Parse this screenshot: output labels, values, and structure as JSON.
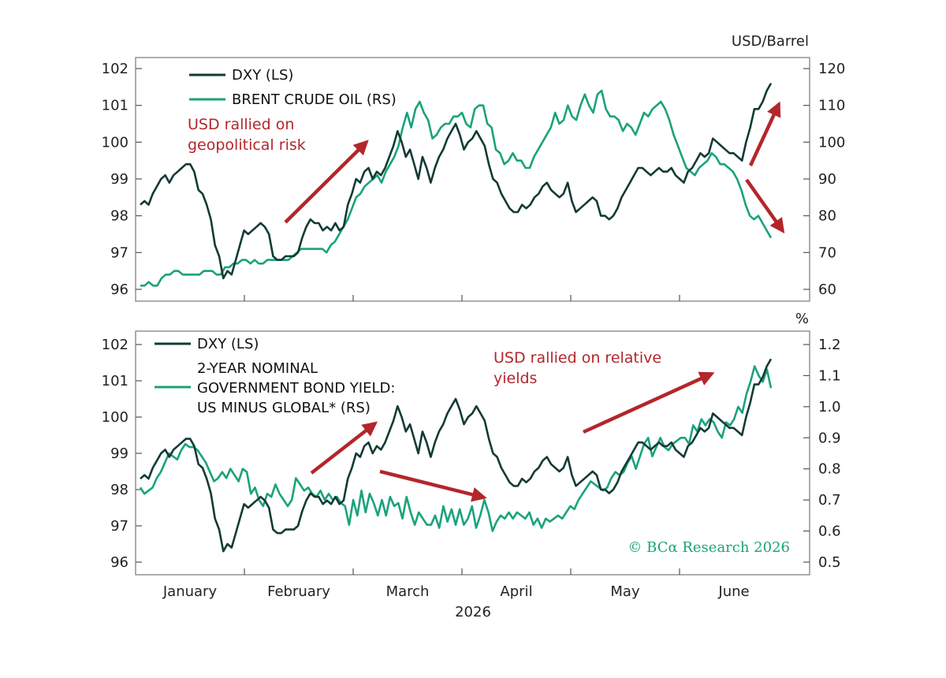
{
  "colors": {
    "dxy": "#143a35",
    "green": "#1aa37a",
    "arrow": "#b3262b",
    "axis": "#555555"
  },
  "x_axis": {
    "months": [
      "January",
      "February",
      "March",
      "April",
      "May",
      "June"
    ],
    "year": "2026"
  },
  "credit": "© BCα Research 2026",
  "chart_data": [
    {
      "type": "line",
      "left_axis": {
        "range": [
          96,
          102
        ],
        "ticks": [
          "102",
          "101",
          "100",
          "99",
          "98",
          "97",
          "96"
        ],
        "unit": ""
      },
      "right_axis": {
        "range": [
          60,
          120
        ],
        "ticks": [
          "120",
          "110",
          "100",
          "90",
          "80",
          "70",
          "60"
        ],
        "unit": "USD/Barrel"
      },
      "legend": [
        "DXY (LS)",
        "BRENT CRUDE OIL (RS)"
      ],
      "annotation": [
        "USD rallied on",
        "geopolitical risk"
      ],
      "series": [
        {
          "name": "DXY (LS)",
          "axis": "left",
          "values": [
            98.3,
            98.4,
            98.3,
            98.6,
            98.8,
            99.0,
            99.1,
            98.9,
            99.1,
            99.2,
            99.3,
            99.4,
            99.4,
            99.2,
            98.7,
            98.6,
            98.3,
            97.9,
            97.2,
            96.9,
            96.3,
            96.5,
            96.4,
            96.8,
            97.2,
            97.6,
            97.5,
            97.6,
            97.7,
            97.8,
            97.7,
            97.5,
            96.9,
            96.8,
            96.8,
            96.9,
            96.9,
            96.9,
            97.0,
            97.4,
            97.7,
            97.9,
            97.8,
            97.8,
            97.6,
            97.7,
            97.6,
            97.8,
            97.6,
            97.7,
            98.3,
            98.6,
            99.0,
            98.9,
            99.2,
            99.3,
            99.0,
            99.2,
            99.1,
            99.3,
            99.6,
            99.9,
            100.3,
            100.0,
            99.6,
            99.8,
            99.4,
            99.0,
            99.6,
            99.3,
            98.9,
            99.3,
            99.6,
            99.8,
            100.1,
            100.3,
            100.5,
            100.2,
            99.8,
            100.0,
            100.1,
            100.3,
            100.1,
            99.9,
            99.4,
            99.0,
            98.9,
            98.6,
            98.4,
            98.2,
            98.1,
            98.1,
            98.3,
            98.2,
            98.3,
            98.5,
            98.6,
            98.8,
            98.9,
            98.7,
            98.6,
            98.5,
            98.6,
            98.9,
            98.4,
            98.1,
            98.2,
            98.3,
            98.4,
            98.5,
            98.4,
            98.0,
            98.0,
            97.9,
            98.0,
            98.2,
            98.5,
            98.7,
            98.9,
            99.1,
            99.3,
            99.3,
            99.2,
            99.1,
            99.2,
            99.3,
            99.2,
            99.2,
            99.3,
            99.1,
            99.0,
            98.9,
            99.2,
            99.3,
            99.5,
            99.7,
            99.6,
            99.7,
            100.1,
            100.0,
            99.9,
            99.8,
            99.7,
            99.7,
            99.6,
            99.5,
            100.0,
            100.4,
            100.9,
            100.9,
            101.1,
            101.4,
            101.6
          ]
        },
        {
          "name": "BRENT CRUDE OIL (RS)",
          "axis": "right",
          "values": [
            61,
            61,
            62,
            61,
            61,
            63,
            64,
            64,
            65,
            65,
            64,
            64,
            64,
            64,
            64,
            65,
            65,
            65,
            64,
            64,
            66,
            66,
            67,
            67,
            68,
            68,
            67,
            68,
            67,
            67,
            68,
            68,
            68,
            68,
            68,
            68,
            69,
            70,
            71,
            71,
            71,
            71,
            71,
            71,
            70,
            72,
            73,
            75,
            77,
            79,
            82,
            85,
            86,
            88,
            89,
            90,
            91,
            89,
            92,
            94,
            96,
            99,
            104,
            108,
            104,
            109,
            111,
            108,
            106,
            101,
            102,
            104,
            105,
            105,
            107,
            107,
            108,
            105,
            104,
            109,
            110,
            110,
            105,
            104,
            98,
            97,
            94,
            95,
            97,
            95,
            95,
            93,
            93,
            96,
            98,
            100,
            102,
            104,
            108,
            105,
            106,
            110,
            107,
            106,
            110,
            113,
            110,
            108,
            113,
            114,
            109,
            107,
            107,
            106,
            103,
            105,
            104,
            102,
            105,
            108,
            107,
            109,
            110,
            111,
            109,
            106,
            102,
            99,
            96,
            93,
            92,
            91,
            93,
            94,
            95,
            97,
            96,
            94,
            94,
            93,
            92,
            90,
            87,
            83,
            80,
            79,
            80,
            78,
            76,
            74
          ]
        }
      ]
    },
    {
      "type": "line",
      "left_axis": {
        "range": [
          96,
          102
        ],
        "ticks": [
          "102",
          "101",
          "100",
          "99",
          "98",
          "97",
          "96"
        ],
        "unit": ""
      },
      "right_axis": {
        "range": [
          0.5,
          1.2
        ],
        "ticks": [
          "1.2",
          "1.1",
          "1.0",
          "0.9",
          "0.8",
          "0.7",
          "0.6",
          "0.5"
        ],
        "unit": "%"
      },
      "legend": [
        "DXY (LS)",
        "2-YEAR NOMINAL",
        "GOVERNMENT BOND YIELD:",
        "US MINUS GLOBAL* (RS)"
      ],
      "annotation": [
        "USD rallied on relative",
        "yields"
      ],
      "series": [
        {
          "name": "DXY (LS)",
          "axis": "left",
          "values": [
            98.3,
            98.4,
            98.3,
            98.6,
            98.8,
            99.0,
            99.1,
            98.9,
            99.1,
            99.2,
            99.3,
            99.4,
            99.4,
            99.2,
            98.7,
            98.6,
            98.3,
            97.9,
            97.2,
            96.9,
            96.3,
            96.5,
            96.4,
            96.8,
            97.2,
            97.6,
            97.5,
            97.6,
            97.7,
            97.8,
            97.7,
            97.5,
            96.9,
            96.8,
            96.8,
            96.9,
            96.9,
            96.9,
            97.0,
            97.4,
            97.7,
            97.9,
            97.8,
            97.8,
            97.6,
            97.7,
            97.6,
            97.8,
            97.6,
            97.7,
            98.3,
            98.6,
            99.0,
            98.9,
            99.2,
            99.3,
            99.0,
            99.2,
            99.1,
            99.3,
            99.6,
            99.9,
            100.3,
            100.0,
            99.6,
            99.8,
            99.4,
            99.0,
            99.6,
            99.3,
            98.9,
            99.3,
            99.6,
            99.8,
            100.1,
            100.3,
            100.5,
            100.2,
            99.8,
            100.0,
            100.1,
            100.3,
            100.1,
            99.9,
            99.4,
            99.0,
            98.9,
            98.6,
            98.4,
            98.2,
            98.1,
            98.1,
            98.3,
            98.2,
            98.3,
            98.5,
            98.6,
            98.8,
            98.9,
            98.7,
            98.6,
            98.5,
            98.6,
            98.9,
            98.4,
            98.1,
            98.2,
            98.3,
            98.4,
            98.5,
            98.4,
            98.0,
            98.0,
            97.9,
            98.0,
            98.2,
            98.5,
            98.7,
            98.9,
            99.1,
            99.3,
            99.3,
            99.2,
            99.1,
            99.2,
            99.3,
            99.2,
            99.2,
            99.3,
            99.1,
            99.0,
            98.9,
            99.2,
            99.3,
            99.5,
            99.7,
            99.6,
            99.7,
            100.1,
            100.0,
            99.9,
            99.8,
            99.7,
            99.7,
            99.6,
            99.5,
            100.0,
            100.4,
            100.9,
            100.9,
            101.1,
            101.4,
            101.6
          ]
        },
        {
          "name": "2-YEAR NOMINAL GOVERNMENT BOND YIELD: US MINUS GLOBAL* (RS)",
          "axis": "right",
          "values": [
            0.74,
            0.72,
            0.73,
            0.74,
            0.77,
            0.79,
            0.82,
            0.85,
            0.84,
            0.83,
            0.86,
            0.88,
            0.87,
            0.87,
            0.86,
            0.84,
            0.82,
            0.79,
            0.76,
            0.77,
            0.79,
            0.77,
            0.8,
            0.78,
            0.76,
            0.8,
            0.79,
            0.72,
            0.74,
            0.7,
            0.68,
            0.72,
            0.71,
            0.75,
            0.72,
            0.7,
            0.68,
            0.7,
            0.77,
            0.75,
            0.73,
            0.74,
            0.72,
            0.71,
            0.73,
            0.7,
            0.72,
            0.7,
            0.71,
            0.69,
            0.68,
            0.62,
            0.7,
            0.65,
            0.73,
            0.66,
            0.72,
            0.69,
            0.65,
            0.7,
            0.65,
            0.71,
            0.68,
            0.69,
            0.64,
            0.71,
            0.66,
            0.62,
            0.66,
            0.64,
            0.62,
            0.62,
            0.65,
            0.61,
            0.68,
            0.63,
            0.67,
            0.62,
            0.67,
            0.62,
            0.64,
            0.68,
            0.61,
            0.65,
            0.7,
            0.66,
            0.6,
            0.63,
            0.65,
            0.64,
            0.66,
            0.64,
            0.66,
            0.65,
            0.64,
            0.66,
            0.62,
            0.64,
            0.61,
            0.64,
            0.63,
            0.64,
            0.65,
            0.64,
            0.66,
            0.68,
            0.67,
            0.7,
            0.72,
            0.74,
            0.76,
            0.75,
            0.74,
            0.73,
            0.74,
            0.77,
            0.79,
            0.78,
            0.79,
            0.82,
            0.84,
            0.8,
            0.84,
            0.88,
            0.9,
            0.84,
            0.87,
            0.9,
            0.87,
            0.86,
            0.88,
            0.89,
            0.9,
            0.9,
            0.88,
            0.94,
            0.92,
            0.96,
            0.94,
            0.96,
            0.95,
            0.92,
            0.9,
            0.95,
            0.94,
            0.96,
            1.0,
            0.98,
            1.04,
            1.08,
            1.13,
            1.1,
            1.08,
            1.12,
            1.06
          ]
        }
      ]
    }
  ]
}
